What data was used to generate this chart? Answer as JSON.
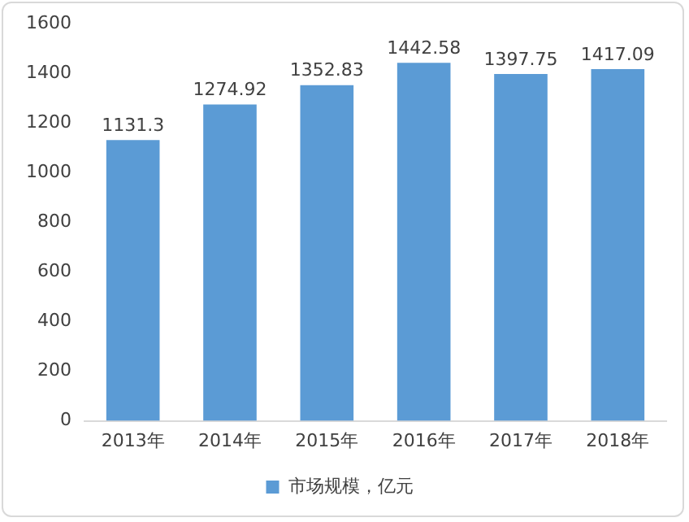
{
  "chart_data": {
    "type": "bar",
    "categories": [
      "2013年",
      "2014年",
      "2015年",
      "2016年",
      "2017年",
      "2018年"
    ],
    "series": [
      {
        "name": "市场规模，亿元",
        "color": "#5b9bd5",
        "values": [
          1131.3,
          1274.92,
          1352.83,
          1442.58,
          1397.75,
          1417.09
        ]
      }
    ],
    "ylim": [
      0,
      1600
    ],
    "yticks": [
      0,
      200,
      400,
      600,
      800,
      1000,
      1200,
      1400,
      1600
    ],
    "data_labels": true,
    "grid": false,
    "legend": "bottom"
  }
}
